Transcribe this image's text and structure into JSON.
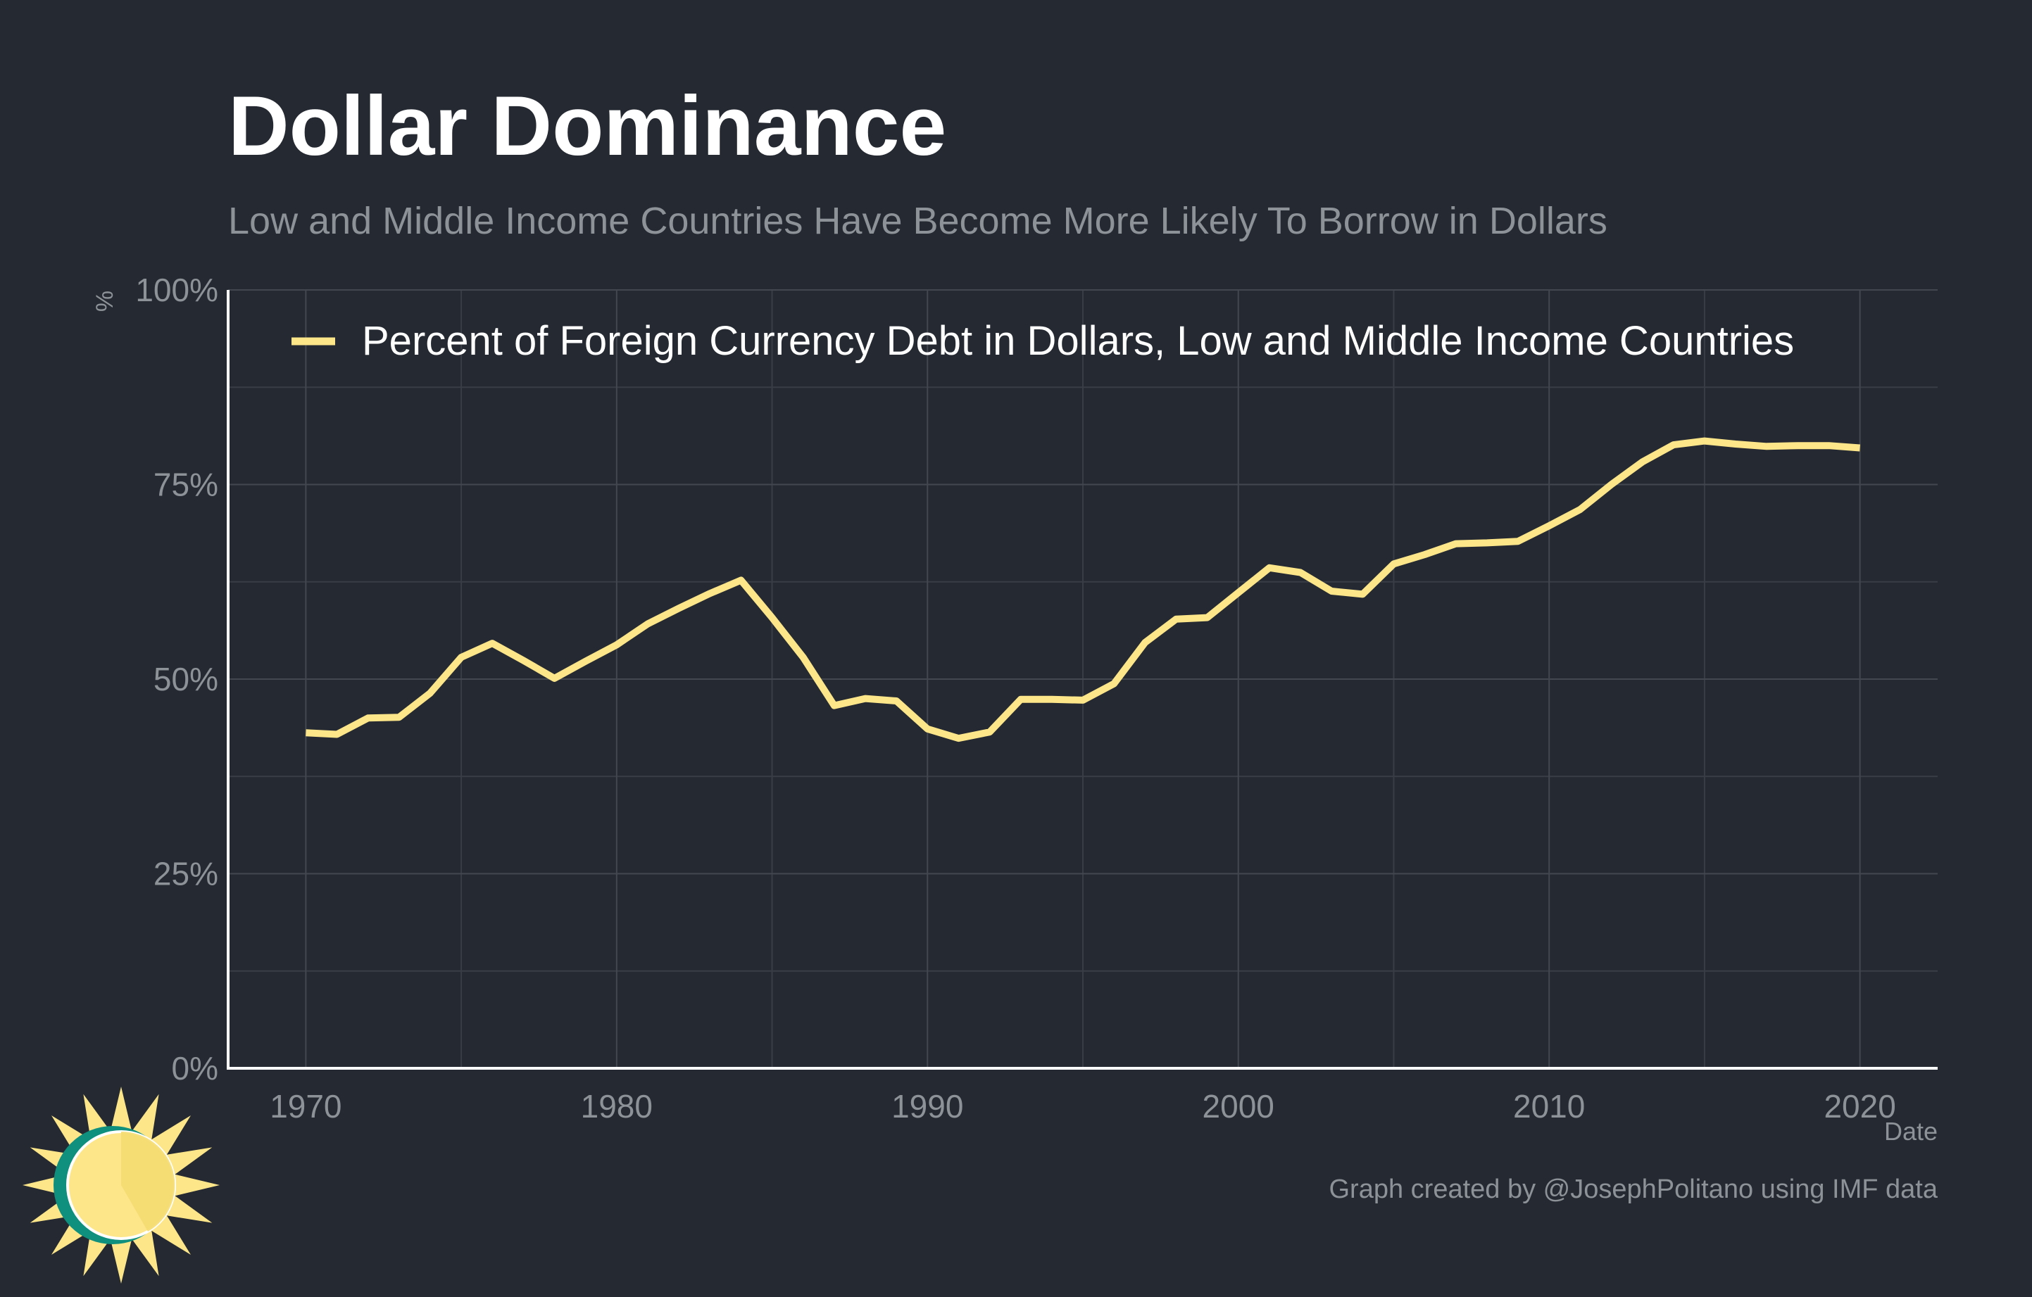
{
  "colors": {
    "background": "#252931",
    "series": "#fde68a",
    "text": "#ffffff",
    "muted": "#8d9198",
    "logo_sun": "#fde68a",
    "logo_ring": "#0f8f7d"
  },
  "logo": {
    "icon": "sun-logo-icon"
  },
  "chart_data": {
    "type": "line",
    "title": "Dollar Dominance",
    "subtitle": "Low and Middle Income Countries Have Become More Likely To Borrow in Dollars",
    "xlabel": "Date",
    "ylabel": "%",
    "xlim": [
      1967.5,
      2022.5
    ],
    "ylim": [
      0,
      100
    ],
    "x_ticks": [
      1970,
      1980,
      1990,
      2000,
      2010,
      2020
    ],
    "x_tick_labels": [
      "1970",
      "1980",
      "1990",
      "2000",
      "2010",
      "2020"
    ],
    "y_ticks": [
      0,
      25,
      50,
      75,
      100
    ],
    "y_tick_labels": [
      "0%",
      "25%",
      "50%",
      "75%",
      "100%"
    ],
    "grid": true,
    "legend_position": "top-left",
    "series": [
      {
        "name": "Percent of Foreign Currency Debt in Dollars, Low and Middle Income Countries",
        "x": [
          1970,
          1971,
          1972,
          1973,
          1974,
          1975,
          1976,
          1977,
          1978,
          1979,
          1980,
          1981,
          1982,
          1983,
          1984,
          1985,
          1986,
          1987,
          1988,
          1989,
          1990,
          1991,
          1992,
          1993,
          1994,
          1995,
          1996,
          1997,
          1998,
          1999,
          2000,
          2001,
          2002,
          2003,
          2004,
          2005,
          2006,
          2007,
          2008,
          2009,
          2010,
          2011,
          2012,
          2013,
          2014,
          2015,
          2016,
          2017,
          2018,
          2019,
          2020
        ],
        "y": [
          43.1,
          42.9,
          45.0,
          45.1,
          48.2,
          52.8,
          54.6,
          52.4,
          50.1,
          52.3,
          54.4,
          57.1,
          59.1,
          61.0,
          62.7,
          57.9,
          52.8,
          46.6,
          47.5,
          47.2,
          43.6,
          42.4,
          43.2,
          47.4,
          47.4,
          47.3,
          49.4,
          54.7,
          57.7,
          57.9,
          61.1,
          64.3,
          63.7,
          61.3,
          60.9,
          64.8,
          66.0,
          67.4,
          67.5,
          67.7,
          69.7,
          71.8,
          75.0,
          77.9,
          80.1,
          80.6,
          80.2,
          79.9,
          80.0,
          80.0,
          79.7
        ]
      }
    ],
    "caption": "Graph created by @JosephPolitano using IMF data"
  }
}
